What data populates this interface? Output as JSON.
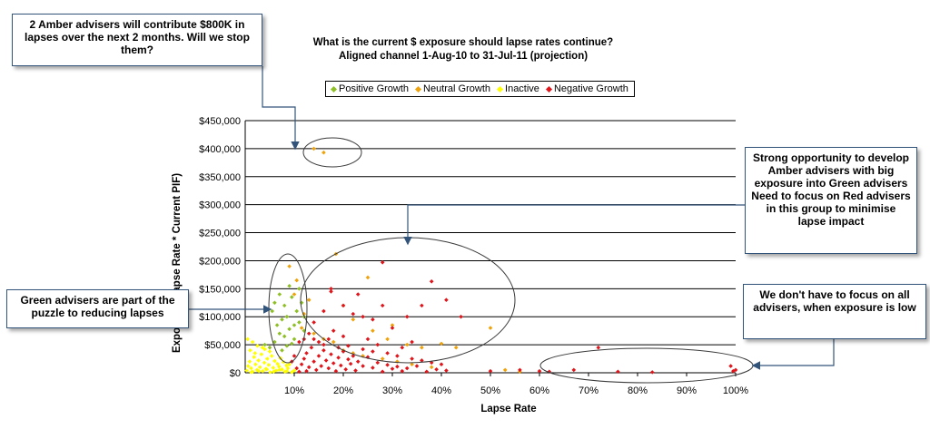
{
  "chart_data": {
    "type": "scatter",
    "title": "What is the current $ exposure should lapse rates continue?",
    "subtitle": "Aligned channel 1-Aug-10 to 31-Jul-11 (projection)",
    "xlabel": "Lapse Rate",
    "ylabel": "Exposure (Lapse Rate * Current PIF)",
    "xlim": [
      0,
      1
    ],
    "ylim": [
      0,
      450000
    ],
    "x_ticks": [
      "10%",
      "20%",
      "30%",
      "40%",
      "50%",
      "60%",
      "70%",
      "80%",
      "90%",
      "100%"
    ],
    "y_ticks": [
      "$0",
      "$50,000",
      "$100,000",
      "$150,000",
      "$200,000",
      "$250,000",
      "$300,000",
      "$350,000",
      "$400,000",
      "$450,000"
    ],
    "grid": "horizontal",
    "legend_position": "top",
    "series": [
      {
        "name": "Positive Growth",
        "color": "#8fbf26",
        "points": [
          [
            0.055,
            110000
          ],
          [
            0.06,
            125000
          ],
          [
            0.065,
            85000
          ],
          [
            0.07,
            140000
          ],
          [
            0.075,
            95000
          ],
          [
            0.08,
            120000
          ],
          [
            0.085,
            100000
          ],
          [
            0.09,
            155000
          ],
          [
            0.095,
            135000
          ],
          [
            0.1,
            85000
          ],
          [
            0.105,
            110000
          ],
          [
            0.11,
            150000
          ],
          [
            0.115,
            125000
          ],
          [
            0.12,
            100000
          ],
          [
            0.07,
            70000
          ],
          [
            0.08,
            65000
          ],
          [
            0.09,
            78000
          ],
          [
            0.1,
            60000
          ],
          [
            0.06,
            55000
          ],
          [
            0.05,
            45000
          ],
          [
            0.04,
            50000
          ],
          [
            0.075,
            40000
          ],
          [
            0.085,
            48000
          ],
          [
            0.095,
            52000
          ],
          [
            0.11,
            90000
          ],
          [
            0.12,
            75000
          ]
        ]
      },
      {
        "name": "Neutral Growth",
        "color": "#f0a20a",
        "points": [
          [
            0.14,
            400000
          ],
          [
            0.16,
            393000
          ],
          [
            0.09,
            190000
          ],
          [
            0.185,
            212000
          ],
          [
            0.25,
            170000
          ],
          [
            0.2,
            120000
          ],
          [
            0.22,
            95000
          ],
          [
            0.26,
            75000
          ],
          [
            0.29,
            60000
          ],
          [
            0.3,
            85000
          ],
          [
            0.33,
            50000
          ],
          [
            0.36,
            45000
          ],
          [
            0.4,
            52000
          ],
          [
            0.43,
            45000
          ],
          [
            0.5,
            80000
          ],
          [
            0.53,
            5000
          ],
          [
            0.56,
            2000
          ],
          [
            0.1,
            140000
          ],
          [
            0.105,
            165000
          ],
          [
            0.12,
            105000
          ],
          [
            0.13,
            130000
          ],
          [
            0.115,
            80000
          ],
          [
            0.14,
            70000
          ],
          [
            0.16,
            60000
          ],
          [
            0.18,
            55000
          ],
          [
            0.2,
            40000
          ],
          [
            0.22,
            35000
          ],
          [
            0.24,
            30000
          ],
          [
            0.28,
            25000
          ],
          [
            0.31,
            20000
          ],
          [
            0.34,
            15000
          ],
          [
            0.38,
            10000
          ]
        ]
      },
      {
        "name": "Inactive",
        "color": "#ffff00",
        "points": [
          [
            0.003,
            4000
          ],
          [
            0.006,
            12000
          ],
          [
            0.009,
            20000
          ],
          [
            0.012,
            8000
          ],
          [
            0.015,
            2000
          ],
          [
            0.018,
            28000
          ],
          [
            0.021,
            15000
          ],
          [
            0.024,
            5000
          ],
          [
            0.027,
            22000
          ],
          [
            0.03,
            10000
          ],
          [
            0.033,
            33000
          ],
          [
            0.036,
            3000
          ],
          [
            0.039,
            18000
          ],
          [
            0.042,
            7000
          ],
          [
            0.045,
            25000
          ],
          [
            0.048,
            14000
          ],
          [
            0.051,
            1000
          ],
          [
            0.054,
            30000
          ],
          [
            0.057,
            9000
          ],
          [
            0.06,
            21000
          ],
          [
            0.063,
            4000
          ],
          [
            0.066,
            16000
          ],
          [
            0.069,
            11000
          ],
          [
            0.072,
            26000
          ],
          [
            0.075,
            6000
          ],
          [
            0.078,
            19000
          ],
          [
            0.081,
            2000
          ],
          [
            0.084,
            13000
          ],
          [
            0.087,
            8000
          ],
          [
            0.09,
            15000
          ],
          [
            0.01,
            40000
          ],
          [
            0.02,
            35000
          ],
          [
            0.035,
            45000
          ],
          [
            0.05,
            38000
          ],
          [
            0.005,
            60000
          ],
          [
            0.015,
            55000
          ],
          [
            0.025,
            48000
          ],
          [
            0.04,
            42000
          ],
          [
            0.012,
            1000
          ],
          [
            0.028,
            3000
          ],
          [
            0.044,
            6000
          ],
          [
            0.058,
            2000
          ],
          [
            0.07,
            5000
          ],
          [
            0.085,
            3000
          ],
          [
            0.095,
            1000
          ],
          [
            0.1,
            4000
          ]
        ]
      },
      {
        "name": "Negative Growth",
        "color": "#e0151b",
        "points": [
          [
            0.115,
            15000
          ],
          [
            0.12,
            25000
          ],
          [
            0.125,
            35000
          ],
          [
            0.13,
            10000
          ],
          [
            0.135,
            45000
          ],
          [
            0.14,
            20000
          ],
          [
            0.145,
            5000
          ],
          [
            0.15,
            30000
          ],
          [
            0.155,
            12000
          ],
          [
            0.16,
            40000
          ],
          [
            0.165,
            22000
          ],
          [
            0.17,
            8000
          ],
          [
            0.175,
            33000
          ],
          [
            0.18,
            17000
          ],
          [
            0.185,
            3000
          ],
          [
            0.19,
            27000
          ],
          [
            0.195,
            13000
          ],
          [
            0.2,
            38000
          ],
          [
            0.205,
            6000
          ],
          [
            0.21,
            24000
          ],
          [
            0.215,
            16000
          ],
          [
            0.22,
            30000
          ],
          [
            0.225,
            4000
          ],
          [
            0.23,
            20000
          ],
          [
            0.24,
            12000
          ],
          [
            0.25,
            28000
          ],
          [
            0.26,
            9000
          ],
          [
            0.27,
            18000
          ],
          [
            0.28,
            2000
          ],
          [
            0.29,
            14000
          ],
          [
            0.3,
            7000
          ],
          [
            0.31,
            11000
          ],
          [
            0.32,
            3000
          ],
          [
            0.33,
            8000
          ],
          [
            0.35,
            12000
          ],
          [
            0.37,
            2000
          ],
          [
            0.39,
            6000
          ],
          [
            0.41,
            4000
          ],
          [
            0.175,
            145000
          ],
          [
            0.175,
            150000
          ],
          [
            0.2,
            120000
          ],
          [
            0.22,
            105000
          ],
          [
            0.24,
            100000
          ],
          [
            0.26,
            95000
          ],
          [
            0.28,
            120000
          ],
          [
            0.3,
            80000
          ],
          [
            0.28,
            197000
          ],
          [
            0.38,
            163000
          ],
          [
            0.41,
            130000
          ],
          [
            0.44,
            100000
          ],
          [
            0.36,
            120000
          ],
          [
            0.33,
            100000
          ],
          [
            0.23,
            140000
          ],
          [
            0.16,
            110000
          ],
          [
            0.14,
            90000
          ],
          [
            0.18,
            75000
          ],
          [
            0.2,
            65000
          ],
          [
            0.25,
            60000
          ],
          [
            0.27,
            50000
          ],
          [
            0.34,
            55000
          ],
          [
            0.32,
            45000
          ],
          [
            0.095,
            20000
          ],
          [
            0.1,
            30000
          ],
          [
            0.11,
            55000
          ],
          [
            0.12,
            60000
          ],
          [
            0.13,
            70000
          ],
          [
            0.15,
            55000
          ],
          [
            0.17,
            60000
          ],
          [
            0.5,
            3000
          ],
          [
            0.56,
            5000
          ],
          [
            0.6,
            3000
          ],
          [
            0.62,
            2000
          ],
          [
            0.67,
            5000
          ],
          [
            0.72,
            45000
          ],
          [
            0.76,
            2000
          ],
          [
            0.83,
            1000
          ],
          [
            0.99,
            12000
          ],
          [
            0.995,
            3000
          ],
          [
            1.0,
            5000
          ],
          [
            0.105,
            8000
          ],
          [
            0.11,
            2000
          ],
          [
            0.125,
            3000
          ],
          [
            0.14,
            60000
          ],
          [
            0.16,
            50000
          ],
          [
            0.19,
            45000
          ],
          [
            0.21,
            48000
          ],
          [
            0.24,
            42000
          ],
          [
            0.26,
            38000
          ],
          [
            0.29,
            35000
          ],
          [
            0.31,
            30000
          ],
          [
            0.34,
            25000
          ],
          [
            0.36,
            22000
          ],
          [
            0.38,
            18000
          ],
          [
            0.4,
            15000
          ]
        ]
      }
    ]
  },
  "callouts": {
    "top_left": "2 Amber advisers will contribute $800K in lapses over the next 2 months. Will we stop them?",
    "right_top": "Strong opportunity to develop Amber advisers with big exposure into Green advisers Need to focus on Red advisers in this group to minimise lapse impact",
    "left_mid": "Green advisers are part of the puzzle to reducing lapses",
    "right_bottom": "We don't have to focus on all advisers, when exposure is low"
  }
}
